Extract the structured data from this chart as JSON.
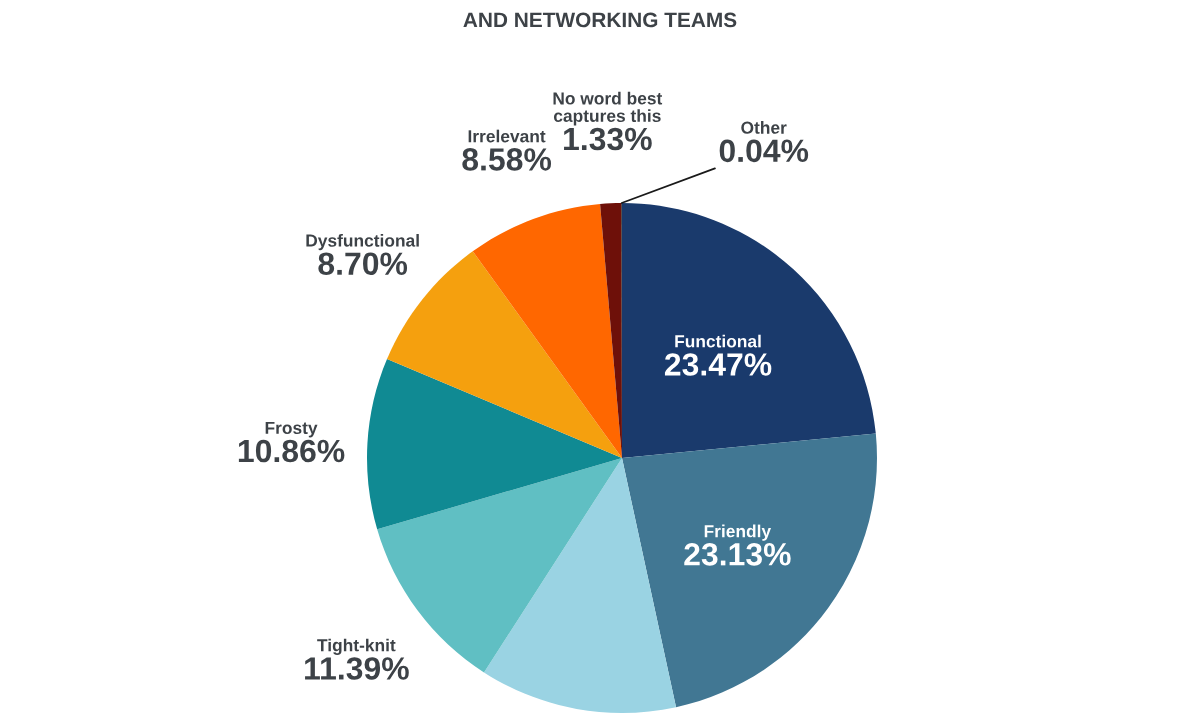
{
  "chart_data": {
    "type": "pie",
    "title": "AND NETWORKING TEAMS",
    "categories": [
      "Functional",
      "Friendly",
      null,
      "Tight-knit",
      "Frosty",
      "Dysfunctional",
      "Irrelevant",
      "No word best\ncaptures this",
      "Other"
    ],
    "values": [
      23.47,
      23.13,
      12.5,
      11.39,
      10.86,
      8.7,
      8.58,
      1.33,
      0.04
    ],
    "value_labels": [
      "23.47%",
      "23.13%",
      null,
      "11.39%",
      "10.86%",
      "8.70%",
      "8.58%",
      "1.33%",
      "0.04%"
    ],
    "colors": [
      "#1a3a6c",
      "#417793",
      "#9ad3e3",
      "#60bfc3",
      "#108a93",
      "#f5a00e",
      "#ff6700",
      "#6e1009",
      "#1a1a1a"
    ]
  }
}
